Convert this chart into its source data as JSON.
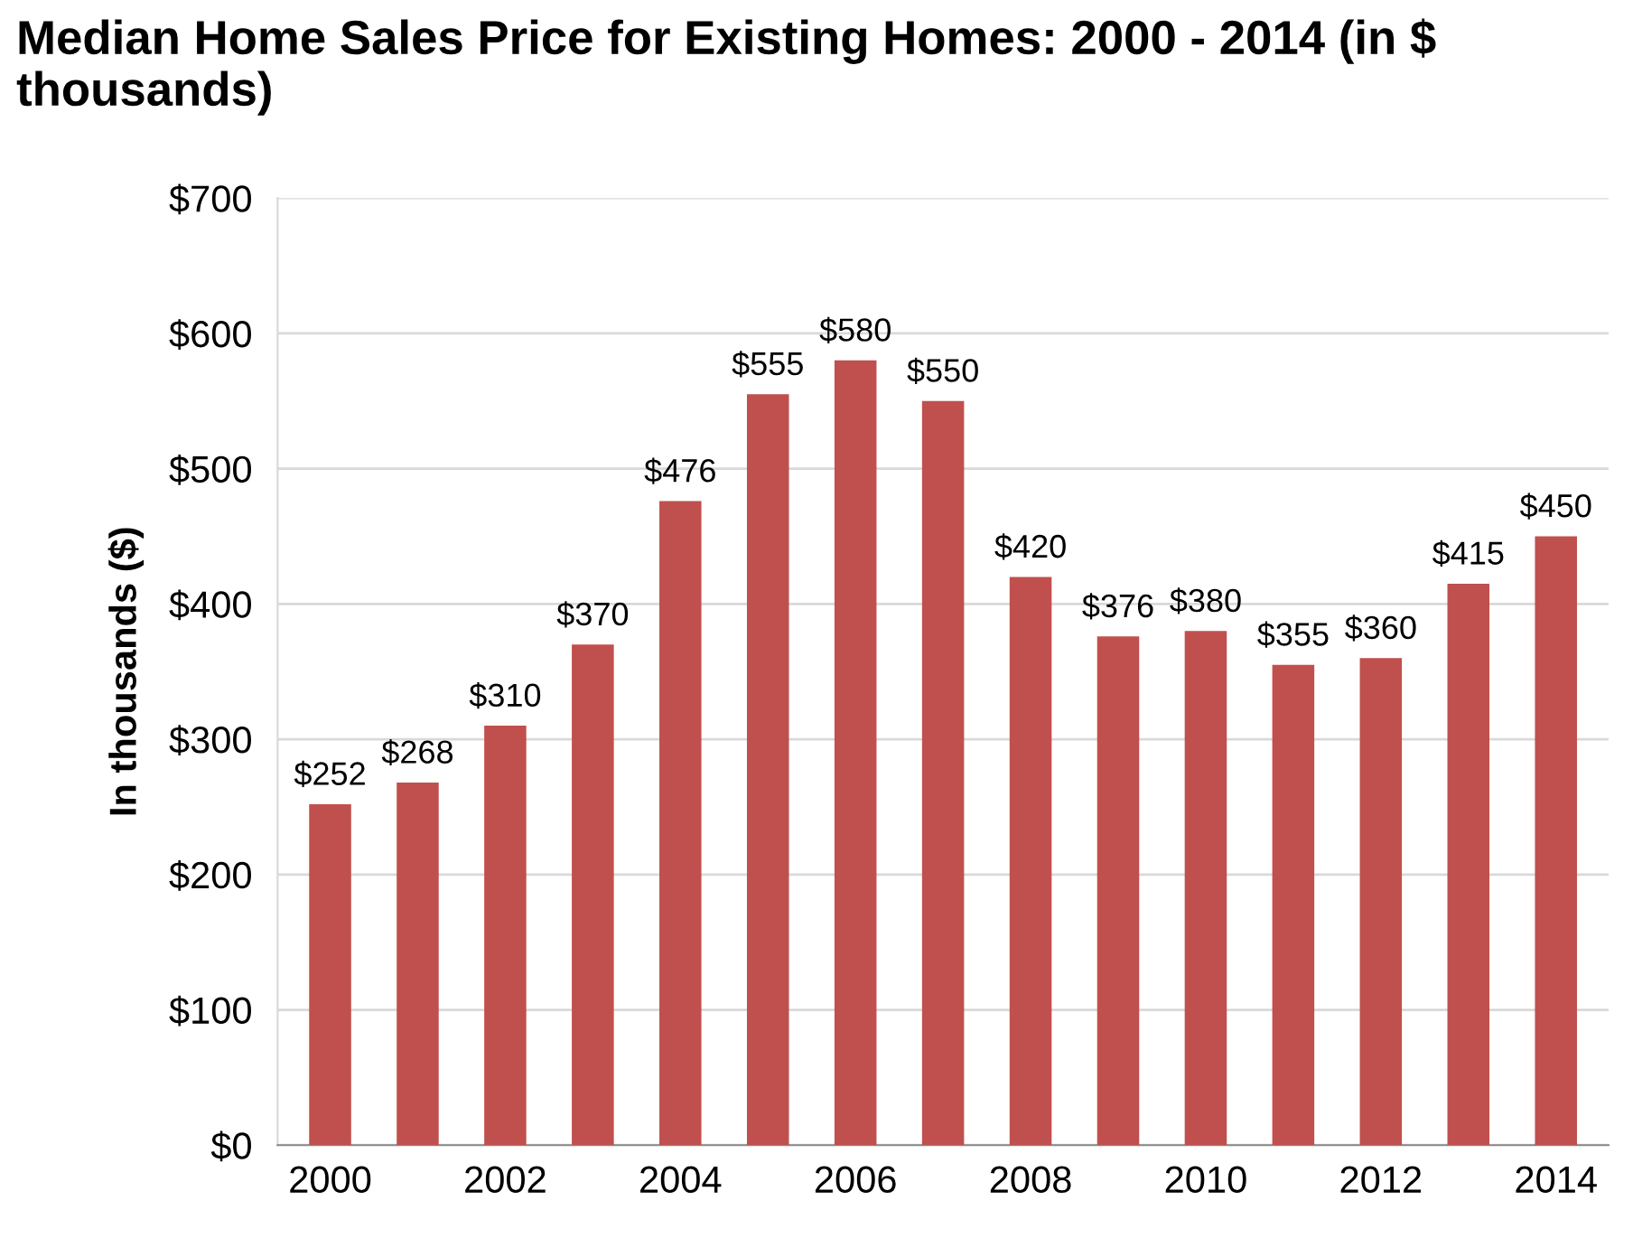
{
  "chart_data": {
    "type": "bar",
    "title": "Median Home Sales Price for Existing Homes: 2000 - 2014 (in $ thousands)",
    "ylabel": "In thousands ($)",
    "categories": [
      "2000",
      null,
      "2002",
      null,
      "2004",
      null,
      "2006",
      null,
      "2008",
      null,
      "2010",
      null,
      "2012",
      null,
      "2014"
    ],
    "values": [
      252,
      268,
      310,
      370,
      476,
      555,
      580,
      550,
      420,
      376,
      380,
      355,
      360,
      415,
      450
    ],
    "value_labels": [
      "$252",
      "$268",
      "$310",
      "$370",
      "$476",
      "$555",
      "$580",
      "$550",
      "$420",
      "$376",
      "$380",
      "$355",
      "$360",
      "$415",
      "$450"
    ],
    "color": "#c0504d",
    "ylim": [
      0,
      700
    ],
    "yticks": [
      {
        "value": 0,
        "label": "$0"
      },
      {
        "value": 100,
        "label": "$100"
      },
      {
        "value": 200,
        "label": "$200"
      },
      {
        "value": 300,
        "label": "$300"
      },
      {
        "value": 400,
        "label": "$400"
      },
      {
        "value": 500,
        "label": "$500"
      },
      {
        "value": 600,
        "label": "$600"
      },
      {
        "value": 700,
        "label": "$700"
      }
    ],
    "grid": "y"
  }
}
